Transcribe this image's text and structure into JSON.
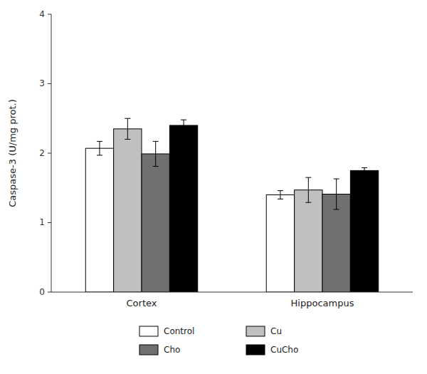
{
  "chart_data": {
    "type": "bar",
    "categories": [
      "Cortex",
      "Hippocampus"
    ],
    "series": [
      {
        "name": "Control",
        "color": "#ffffff",
        "values": [
          2.07,
          1.4
        ],
        "errors": [
          0.1,
          0.06
        ]
      },
      {
        "name": "Cu",
        "color": "#c0c0c0",
        "values": [
          2.35,
          1.47
        ],
        "errors": [
          0.15,
          0.18
        ]
      },
      {
        "name": "Cho",
        "color": "#707070",
        "values": [
          1.99,
          1.41
        ],
        "errors": [
          0.18,
          0.22
        ]
      },
      {
        "name": "CuCho",
        "color": "#000000",
        "values": [
          2.4,
          1.75
        ],
        "errors": [
          0.08,
          0.04
        ]
      }
    ],
    "ylabel": "Caspase-3 (U/mg prot.)",
    "ylim": [
      0,
      4
    ],
    "yticks": [
      0,
      1,
      2,
      3,
      4
    ],
    "grid": false,
    "legend": "bottom"
  }
}
